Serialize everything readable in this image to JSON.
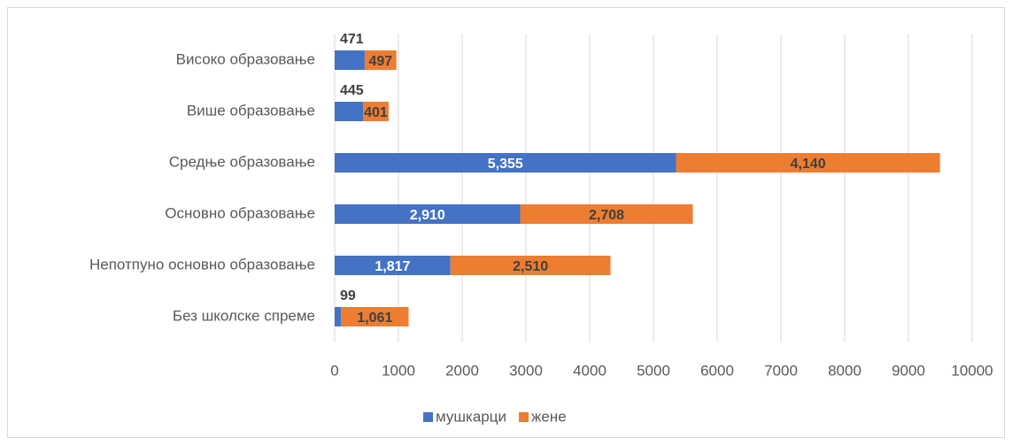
{
  "chart_data": {
    "type": "stacked-bar-horizontal",
    "categories": [
      "Високо образовање",
      "Више образовање",
      "Средње образовање",
      "Основно образовање",
      "Непотпуно основно образовање",
      "Без школске спреме"
    ],
    "series": [
      {
        "name": "мушкарци",
        "color": "#4472c4",
        "values": [
          471,
          445,
          5355,
          2910,
          1817,
          99
        ],
        "value_labels": [
          "471",
          "445",
          "5,355",
          "2,910",
          "1,817",
          "99"
        ]
      },
      {
        "name": "жене",
        "color": "#ed7d31",
        "values": [
          497,
          401,
          4140,
          2708,
          2510,
          1061
        ],
        "value_labels": [
          "497",
          "401",
          "4,140",
          "2,708",
          "2,510",
          "1,061"
        ]
      }
    ],
    "xlim": [
      0,
      10000
    ],
    "xticks": [
      0,
      1000,
      2000,
      3000,
      4000,
      5000,
      6000,
      7000,
      8000,
      9000,
      10000
    ],
    "grid": true,
    "legend": "bottom"
  }
}
